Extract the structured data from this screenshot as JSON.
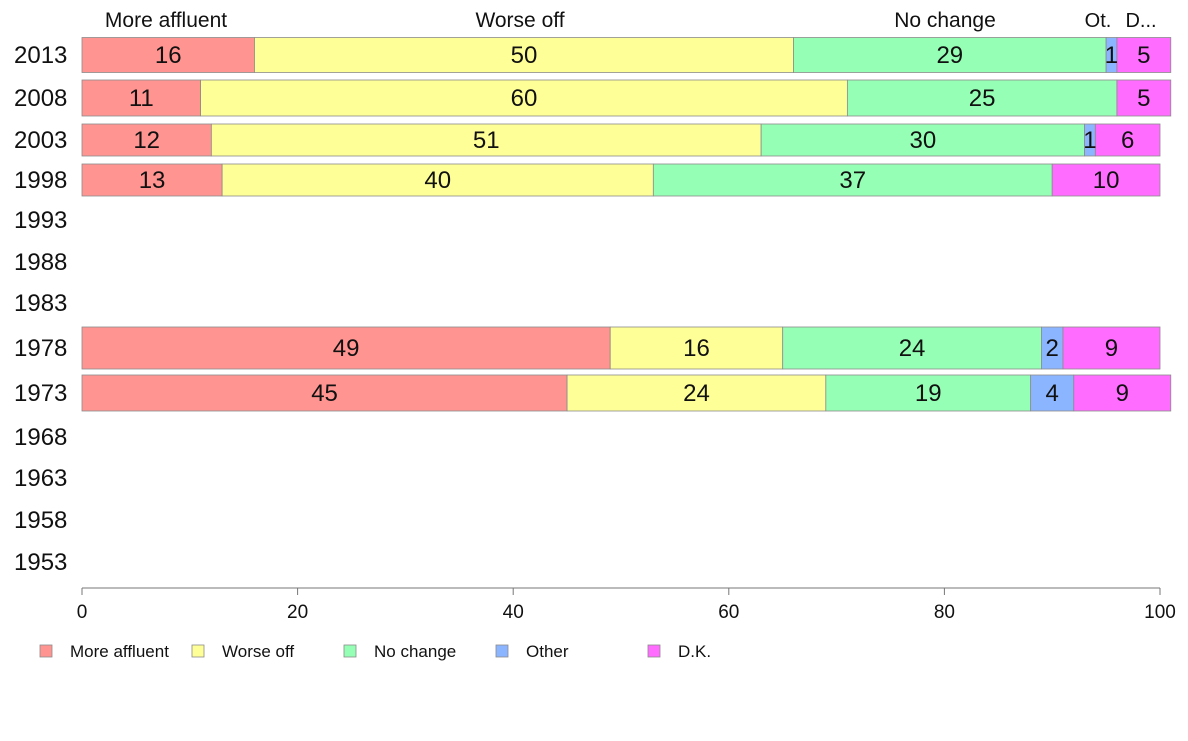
{
  "chart_data": {
    "type": "bar",
    "orientation": "horizontal",
    "stacked": true,
    "categories": [
      "2013",
      "2008",
      "2003",
      "1998",
      "1993",
      "1988",
      "1983",
      "1978",
      "1973",
      "1968",
      "1963",
      "1958",
      "1953"
    ],
    "series": [
      {
        "name": "More affluent",
        "color": "#ff9491",
        "values": [
          16,
          11,
          12,
          13,
          null,
          null,
          null,
          49,
          45,
          null,
          null,
          null,
          null
        ]
      },
      {
        "name": "Worse off",
        "color": "#ffff97",
        "values": [
          50,
          60,
          51,
          40,
          null,
          null,
          null,
          16,
          24,
          null,
          null,
          null,
          null
        ]
      },
      {
        "name": "No change",
        "color": "#94ffb5",
        "values": [
          29,
          25,
          30,
          37,
          null,
          null,
          null,
          24,
          19,
          null,
          null,
          null,
          null
        ]
      },
      {
        "name": "Other",
        "color": "#8cb5ff",
        "values": [
          1,
          0,
          1,
          0,
          null,
          null,
          null,
          2,
          4,
          null,
          null,
          null,
          null
        ]
      },
      {
        "name": "D.K.",
        "color": "#ff6cff",
        "values": [
          5,
          5,
          6,
          10,
          null,
          null,
          null,
          9,
          9,
          null,
          null,
          null,
          null
        ]
      }
    ],
    "column_headers": [
      "More affluent",
      "Worse off",
      "No change",
      "Ot.",
      "D..."
    ],
    "xticks": [
      "0",
      "20",
      "40",
      "60",
      "80",
      "100"
    ],
    "xlim": [
      0,
      100
    ],
    "title": "",
    "xlabel": "",
    "ylabel": "",
    "grid": false,
    "legend_position": "bottom"
  }
}
